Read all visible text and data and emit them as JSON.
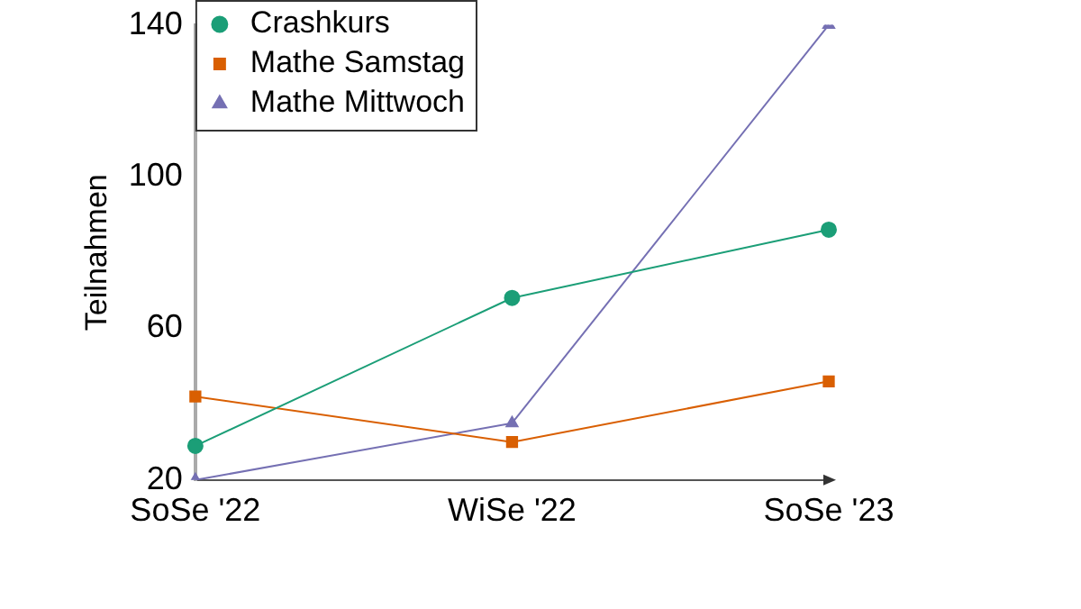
{
  "chart_data": {
    "type": "line",
    "ylabel": "Teilnahmen",
    "categories": [
      "SoSe '22",
      "WiSe '22",
      "SoSe '23"
    ],
    "series": [
      {
        "name": "Crashkurs",
        "color": "#1b9e77",
        "marker": "circle",
        "values": [
          29,
          68,
          86
        ]
      },
      {
        "name": "Mathe Samstag",
        "color": "#d95f02",
        "marker": "square",
        "values": [
          42,
          30,
          46
        ]
      },
      {
        "name": "Mathe Mittwoch",
        "color": "#7570b3",
        "marker": "triangle",
        "values": [
          20,
          35,
          140
        ]
      }
    ],
    "ylim": [
      20,
      140
    ],
    "yticks": [
      20,
      60,
      100,
      140
    ],
    "grid": false,
    "legend": "top left"
  }
}
